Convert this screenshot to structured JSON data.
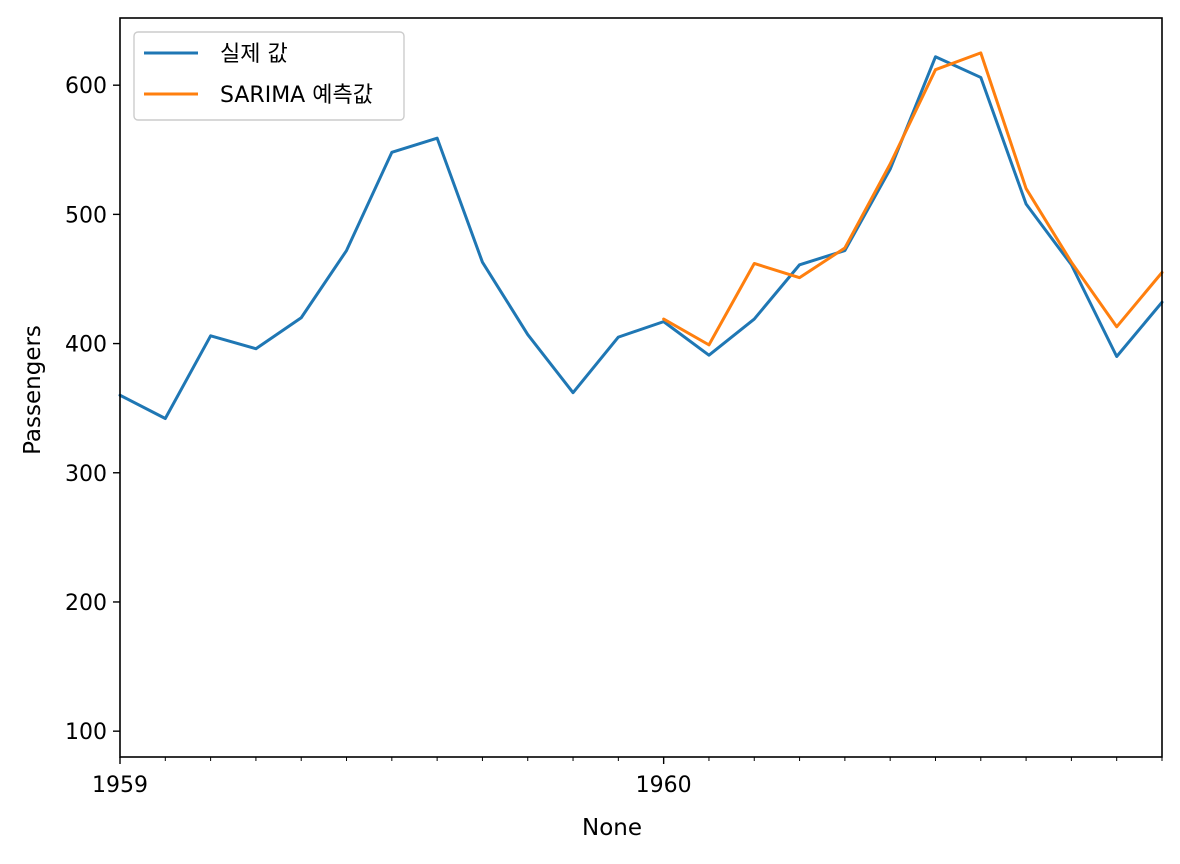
{
  "chart_data": {
    "type": "line",
    "title": "",
    "xlabel": "None",
    "ylabel": "Passengers",
    "x_tick_labels": [
      "1959",
      "1960"
    ],
    "x": [
      "1959-01",
      "1959-02",
      "1959-03",
      "1959-04",
      "1959-05",
      "1959-06",
      "1959-07",
      "1959-08",
      "1959-09",
      "1959-10",
      "1959-11",
      "1959-12",
      "1960-01",
      "1960-02",
      "1960-03",
      "1960-04",
      "1960-05",
      "1960-06",
      "1960-07",
      "1960-08",
      "1960-09",
      "1960-10",
      "1960-11",
      "1960-12"
    ],
    "xlim": [
      "1959-01",
      "1960-12"
    ],
    "ylim": [
      80,
      652
    ],
    "yticks": [
      100,
      200,
      300,
      400,
      500,
      600
    ],
    "grid": false,
    "legend_position": "top-left",
    "series": [
      {
        "name": "실제 값",
        "color": "#1f77b4",
        "x": [
          "1959-01",
          "1959-02",
          "1959-03",
          "1959-04",
          "1959-05",
          "1959-06",
          "1959-07",
          "1959-08",
          "1959-09",
          "1959-10",
          "1959-11",
          "1959-12",
          "1960-01",
          "1960-02",
          "1960-03",
          "1960-04",
          "1960-05",
          "1960-06",
          "1960-07",
          "1960-08",
          "1960-09",
          "1960-10",
          "1960-11",
          "1960-12"
        ],
        "values": [
          360,
          342,
          406,
          396,
          420,
          472,
          548,
          559,
          463,
          407,
          362,
          405,
          417,
          391,
          419,
          461,
          472,
          535,
          622,
          606,
          508,
          461,
          390,
          432
        ]
      },
      {
        "name": "SARIMA 예측값",
        "color": "#ff7f0e",
        "x": [
          "1960-01",
          "1960-02",
          "1960-03",
          "1960-04",
          "1960-05",
          "1960-06",
          "1960-07",
          "1960-08",
          "1960-09",
          "1960-10",
          "1960-11",
          "1960-12"
        ],
        "values": [
          419,
          399,
          462,
          451,
          474,
          539,
          612,
          625,
          520,
          463,
          413,
          455
        ]
      }
    ]
  }
}
